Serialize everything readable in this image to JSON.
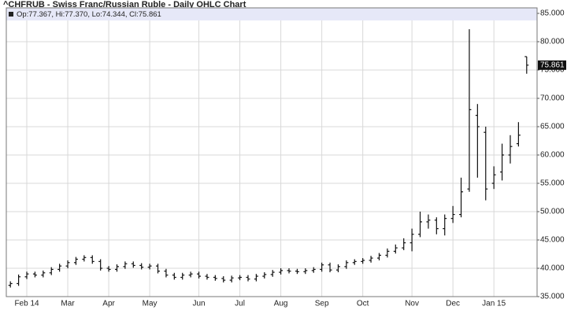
{
  "chart_data": {
    "type": "ohlc",
    "title": "^CHFRUB - Swiss Franc/Russian Ruble - Daily OHLC Chart",
    "subtitle": "Op:77.367, Hi:77.370, Lo:74.344, Cl:75.861",
    "color": "#111111",
    "grid": true,
    "categories": [
      null,
      null,
      "Feb 14",
      null,
      null,
      null,
      null,
      "Mar",
      null,
      null,
      null,
      null,
      "Apr",
      null,
      null,
      null,
      null,
      "May",
      null,
      null,
      null,
      null,
      null,
      "Jun",
      null,
      null,
      null,
      null,
      "Jul",
      null,
      null,
      null,
      null,
      "Aug",
      null,
      null,
      null,
      null,
      "Sep",
      null,
      null,
      null,
      null,
      "Oct",
      null,
      null,
      null,
      null,
      null,
      "Nov",
      null,
      null,
      null,
      null,
      "Dec",
      null,
      null,
      null,
      null,
      "Jan 15",
      null,
      null,
      null,
      null
    ],
    "open": [
      37.0,
      37.3,
      38.5,
      39.0,
      38.8,
      39.2,
      39.8,
      40.4,
      41.0,
      41.6,
      41.9,
      41.2,
      40.0,
      39.8,
      40.3,
      40.8,
      40.5,
      40.2,
      40.4,
      39.5,
      38.8,
      38.4,
      38.8,
      39.0,
      38.6,
      38.4,
      38.2,
      37.9,
      38.3,
      38.4,
      38.1,
      38.6,
      38.9,
      39.3,
      39.6,
      39.5,
      39.4,
      39.6,
      39.8,
      40.6,
      39.7,
      40.3,
      41.0,
      41.2,
      41.4,
      41.8,
      42.3,
      43.0,
      43.6,
      44.5,
      46.0,
      48.2,
      48.5,
      47.0,
      48.8,
      49.5,
      54.0,
      67.0,
      64.0,
      55.0,
      57.0,
      60.0,
      62.0,
      77.367
    ],
    "high": [
      37.7,
      38.9,
      39.4,
      39.4,
      39.6,
      40.2,
      40.8,
      41.4,
      42.0,
      42.3,
      42.3,
      41.6,
      40.4,
      40.7,
      41.2,
      41.2,
      40.9,
      40.8,
      40.8,
      39.9,
      39.2,
      39.2,
      39.4,
      39.4,
      39.0,
      38.8,
      38.6,
      38.7,
      38.8,
      38.8,
      39.0,
      39.3,
      39.7,
      40.0,
      40.0,
      39.9,
      40.0,
      40.2,
      41.0,
      41.0,
      40.7,
      41.4,
      41.6,
      41.8,
      42.2,
      42.7,
      43.5,
      44.2,
      45.3,
      47.0,
      50.0,
      49.5,
      49.0,
      49.5,
      51.0,
      56.0,
      82.2,
      69.0,
      65.0,
      58.0,
      62.0,
      63.5,
      65.8,
      77.37
    ],
    "low": [
      36.6,
      36.9,
      38.1,
      38.4,
      38.4,
      38.8,
      39.4,
      40.0,
      40.6,
      41.2,
      40.8,
      39.6,
      39.4,
      39.4,
      39.9,
      40.1,
      39.8,
      39.8,
      39.1,
      38.4,
      38.0,
      38.0,
      38.4,
      38.2,
      38.0,
      37.8,
      37.5,
      37.5,
      37.9,
      37.7,
      37.7,
      38.2,
      38.5,
      38.9,
      39.1,
      39.0,
      39.0,
      39.2,
      39.4,
      39.3,
      39.3,
      39.9,
      40.6,
      40.8,
      41.0,
      41.4,
      41.9,
      42.6,
      43.2,
      43.0,
      45.5,
      47.0,
      46.0,
      45.8,
      48.0,
      49.0,
      53.5,
      56.0,
      52.0,
      54.0,
      55.5,
      58.5,
      61.5,
      74.344
    ],
    "close": [
      37.3,
      38.5,
      39.0,
      38.8,
      39.2,
      39.8,
      40.4,
      41.0,
      41.6,
      41.9,
      41.2,
      40.0,
      39.8,
      40.3,
      40.8,
      40.5,
      40.2,
      40.4,
      39.5,
      38.8,
      38.4,
      38.8,
      39.0,
      38.6,
      38.4,
      38.2,
      37.9,
      38.3,
      38.4,
      38.1,
      38.6,
      38.9,
      39.3,
      39.6,
      39.5,
      39.4,
      39.6,
      39.8,
      40.6,
      39.7,
      40.3,
      41.0,
      41.2,
      41.4,
      41.8,
      42.3,
      43.0,
      43.6,
      44.5,
      46.0,
      48.2,
      48.5,
      47.0,
      48.8,
      49.5,
      53.5,
      68.0,
      65.0,
      54.0,
      56.5,
      60.0,
      61.5,
      63.5,
      75.861
    ],
    "ylim": [
      35,
      85
    ],
    "yticks": [
      {
        "value": 35,
        "label": "35.000"
      },
      {
        "value": 40,
        "label": "40.000"
      },
      {
        "value": 45,
        "label": "45.000"
      },
      {
        "value": 50,
        "label": "50.000"
      },
      {
        "value": 55,
        "label": "55.000"
      },
      {
        "value": 60,
        "label": "60.000"
      },
      {
        "value": 65,
        "label": "65.000"
      },
      {
        "value": 70,
        "label": "70.000"
      },
      {
        "value": 75,
        "label": "75.000"
      },
      {
        "value": 80,
        "label": "80.000"
      },
      {
        "value": 85,
        "label": "85.000"
      }
    ]
  }
}
